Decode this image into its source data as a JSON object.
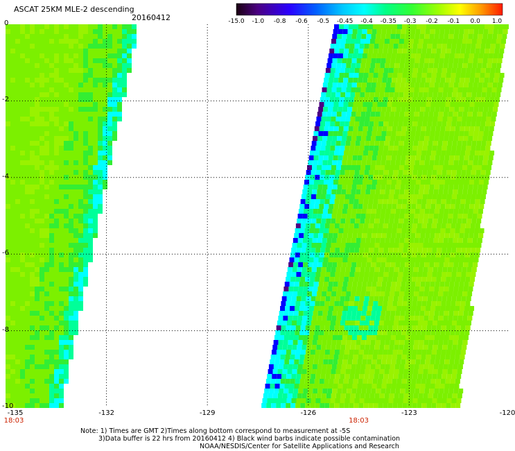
{
  "header": {
    "title": "ASCAT 25KM MLE-2 descending",
    "date": "20160412"
  },
  "colorbar": {
    "labels": [
      "-15.0",
      "-1.0",
      "-0.8",
      "-0.6",
      "-0.5",
      "-0.45",
      "-0.4",
      "-0.35",
      "-0.3",
      "-0.2",
      "-0.1",
      "0.0",
      "1.0"
    ],
    "colors": [
      "#2a0033",
      "#4b0082",
      "#3a00c8",
      "#0000ff",
      "#0066ff",
      "#00b4ff",
      "#00ffff",
      "#00ff99",
      "#33ff33",
      "#99ff00",
      "#ffff00",
      "#ff9900",
      "#ff3300"
    ]
  },
  "map": {
    "lon_range": [
      -135,
      -120
    ],
    "lat_range": [
      -10,
      0
    ],
    "y_ticks": [
      "0",
      "-2",
      "-4",
      "-6",
      "-8",
      "-10"
    ],
    "x_ticks": [
      "-135",
      "-132",
      "-129",
      "-126",
      "-123",
      "-120"
    ],
    "times": [
      {
        "label": "18:03",
        "lon": -135
      },
      {
        "label": "18:03",
        "lon": -124.5
      }
    ],
    "field_colors": {
      "base": "#7cf000",
      "light": "#99f200",
      "green": "#33ee33",
      "aqua": "#00ff99",
      "cyan": "#00ffff",
      "blue": "#0000ff",
      "dark": "#4b0082"
    }
  },
  "notes": {
    "line1": "Note: 1) Times are GMT 2)Times along bottom correspond to measurement at -5S",
    "line2": "3)Data buffer is 22 hrs from 20160412 4) Black wind barbs indicate possible contamination",
    "line3": "NOAA/NESDIS/Center for Satellite Applications and Research"
  }
}
